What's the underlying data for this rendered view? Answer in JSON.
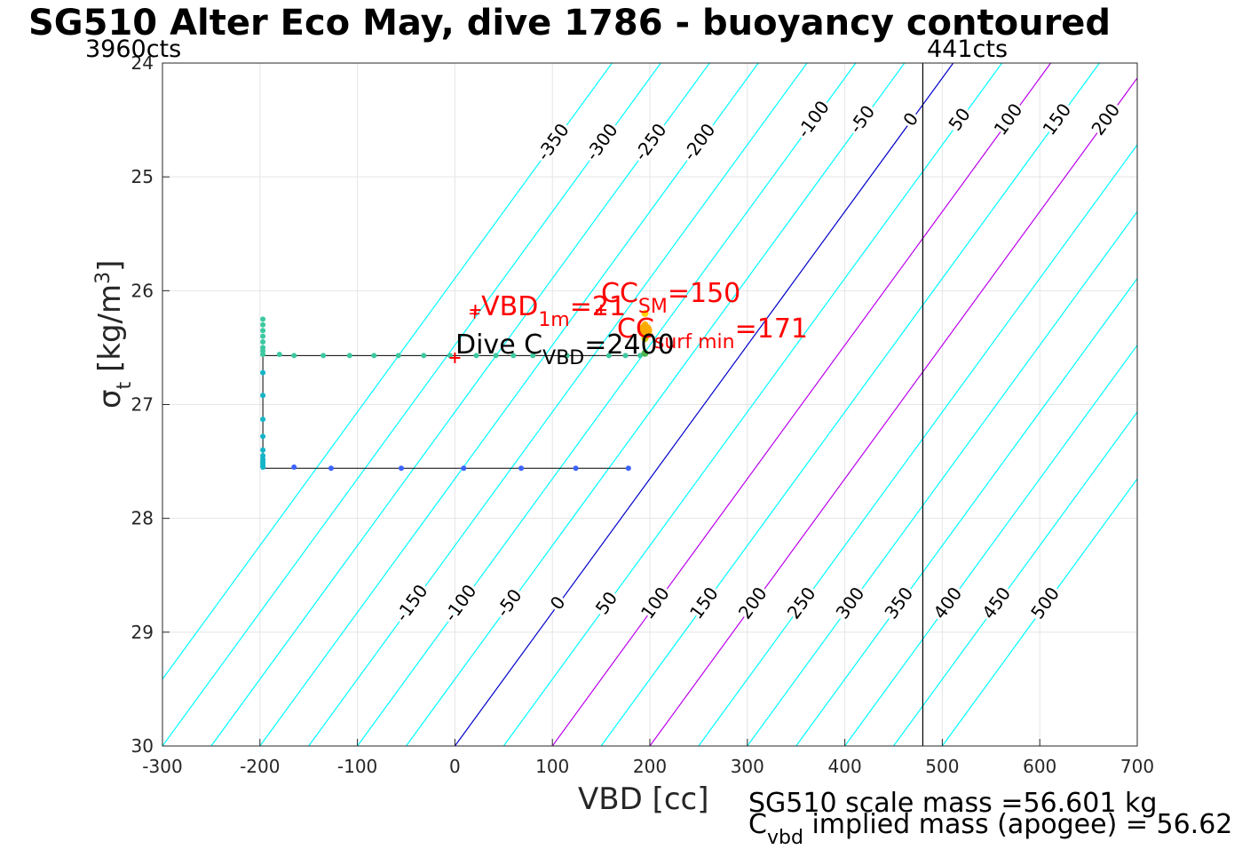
{
  "title": "SG510 Alter Eco May, dive 1786 - buoyancy contoured",
  "left_counts": "3960cts",
  "right_counts": "441cts",
  "footer": {
    "scale_mass": "SG510 scale mass =56.601 kg",
    "implied_mass_prefix": "C",
    "implied_mass_sub": "vbd",
    "implied_mass_rest": " implied mass (apogee) = 56.62"
  },
  "annotations": {
    "vbd1m_plus": "+",
    "vbd1m_main": "VBD",
    "vbd1m_sub": "1m",
    "vbd1m_val": "=21",
    "ccsm_main": "CC",
    "ccsm_sub": "SM",
    "ccsm_val": "=150",
    "ccsurf_main": "CC",
    "ccsurf_sub": "surf min",
    "ccsurf_val": "=171",
    "dive_main": "Dive C",
    "dive_sub": "VBD",
    "dive_val": "=2400"
  },
  "colors": {
    "contour": "#00ffff",
    "zero_contour": "#0000cc",
    "magenta_contour": "#bb00ee",
    "grid": "#e5e5e5",
    "axis": "#262626",
    "descent": "#3cc8a0",
    "ascent": "#3c64ff",
    "red": "#ff0000",
    "orange": "#ffaa00"
  },
  "chart_data": {
    "type": "scatter",
    "xlabel": "VBD [cc]",
    "ylabel_main": "σ",
    "ylabel_sub": "t",
    "ylabel_unit": "[kg/m",
    "ylabel_sup": "3",
    "ylabel_close": "]",
    "xlim": [
      -300,
      700
    ],
    "ylim": [
      30,
      24
    ],
    "y_reversed": true,
    "grid": true,
    "xticks": [
      -300,
      -200,
      -100,
      0,
      100,
      200,
      300,
      400,
      500,
      600,
      700
    ],
    "yticks": [
      24,
      25,
      26,
      27,
      28,
      29,
      30
    ],
    "contours": {
      "levels": [
        -350,
        -300,
        -250,
        -200,
        -150,
        -100,
        -50,
        0,
        50,
        100,
        150,
        200,
        250,
        300,
        350,
        400,
        450,
        500
      ],
      "slope_vbd_per_sigma": -85.2,
      "labels_top": [
        -350,
        -300,
        -250,
        -200,
        -100,
        -50,
        0,
        50,
        100,
        150,
        200,
        250,
        300,
        350,
        400,
        450,
        500
      ],
      "labels_bottom": [
        -150,
        -100,
        -50,
        0,
        50,
        100,
        150,
        200,
        250,
        300,
        350,
        400,
        450,
        500
      ],
      "highlight_zero": 0,
      "highlight_magenta": [
        100,
        200
      ]
    },
    "vertical_line_x": 480,
    "descent": {
      "x": [
        -165,
        -135,
        -108,
        -83,
        -58,
        -32,
        -5,
        22,
        42,
        60,
        80,
        115,
        158,
        175,
        190,
        -180,
        -197,
        -197,
        -197,
        -197,
        -197,
        -197,
        -197,
        -197
      ],
      "y": [
        26.57,
        26.57,
        26.57,
        26.57,
        26.57,
        26.57,
        26.57,
        26.57,
        26.57,
        26.57,
        26.57,
        26.57,
        26.57,
        26.57,
        26.57,
        26.56,
        26.25,
        26.3,
        26.35,
        26.4,
        26.45,
        26.5,
        26.53,
        26.56
      ]
    },
    "profile_line": {
      "x": [
        195,
        -197,
        -197,
        -197,
        178
      ],
      "y": [
        26.57,
        26.57,
        26.6,
        27.56,
        27.56
      ]
    },
    "ascent": {
      "x": [
        178,
        124,
        68,
        9,
        -55,
        -127,
        -165
      ],
      "y": [
        27.56,
        27.56,
        27.56,
        27.56,
        27.56,
        27.56,
        27.55
      ]
    },
    "mid_points": {
      "x": [
        -197,
        -197,
        -197,
        -197,
        -197,
        -197,
        -197,
        -197,
        -197,
        -197,
        -197
      ],
      "y": [
        26.72,
        26.92,
        27.13,
        27.28,
        27.4,
        27.45,
        27.48,
        27.5,
        27.52,
        27.54,
        27.55
      ]
    },
    "surface_points": {
      "x": [
        195,
        195,
        195,
        195,
        195
      ],
      "y": [
        26.2,
        26.3,
        26.35,
        26.42,
        26.55
      ]
    },
    "markers": [
      {
        "name": "VBD1m",
        "x": 21,
        "y": 26.17
      },
      {
        "name": "CC_SM",
        "x": 150,
        "y": 26.17
      },
      {
        "name": "dive",
        "x": 0,
        "y": 26.59
      }
    ]
  }
}
